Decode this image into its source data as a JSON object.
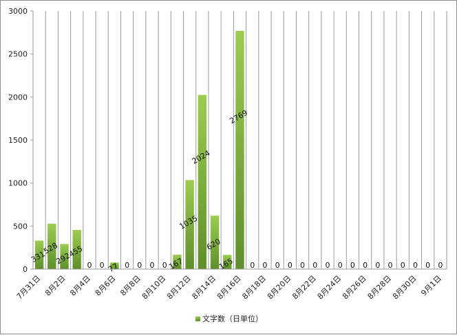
{
  "chart_data": {
    "type": "bar",
    "ylim": [
      0,
      3000
    ],
    "yticks": [
      0,
      500,
      1000,
      1500,
      2000,
      2500,
      3000
    ],
    "grid": "vertical-per-category",
    "legend_position": "bottom",
    "categories": [
      "7月31日",
      "8月1日",
      "8月2日",
      "8月3日",
      "8月4日",
      "8月5日",
      "8月6日",
      "8月7日",
      "8月8日",
      "8月9日",
      "8月10日",
      "8月11日",
      "8月12日",
      "8月13日",
      "8月14日",
      "8月15日",
      "8月16日",
      "8月17日",
      "8月18日",
      "8月19日",
      "8月20日",
      "8月21日",
      "8月22日",
      "8月23日",
      "8月24日",
      "8月25日",
      "8月26日",
      "8月27日",
      "8月28日",
      "8月29日",
      "8月30日",
      "8月31日",
      "9月1日"
    ],
    "shown_tick_labels": [
      "7月31日",
      "8月2日",
      "8月4日",
      "8月6日",
      "8月8日",
      "8月10日",
      "8月12日",
      "8月14日",
      "8月16日",
      "8月18日",
      "8月20日",
      "8月22日",
      "8月24日",
      "8月26日",
      "8月28日",
      "8月30日",
      "9月1日"
    ],
    "series": [
      {
        "name": "文字数（日単位）",
        "color": "#8bc34a",
        "values": [
          331,
          528,
          292,
          455,
          0,
          0,
          77,
          0,
          0,
          0,
          0,
          167,
          1035,
          2024,
          620,
          165,
          2769,
          0,
          0,
          0,
          0,
          0,
          0,
          0,
          0,
          0,
          0,
          0,
          0,
          0,
          0,
          0,
          0
        ]
      }
    ]
  }
}
